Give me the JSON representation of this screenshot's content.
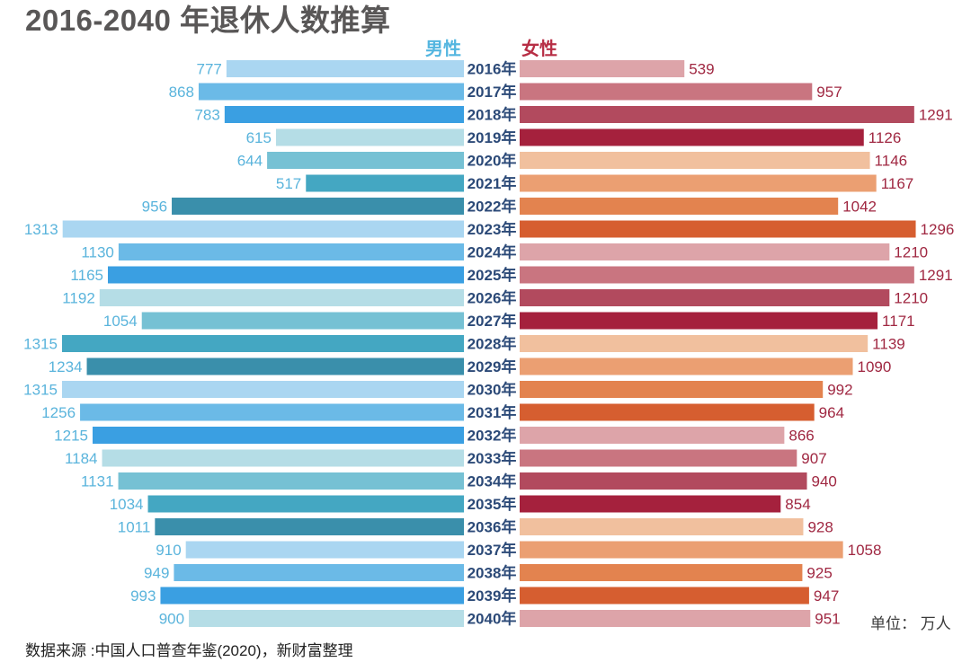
{
  "title": "2016-2040 年退休人数推算",
  "legend": {
    "male": "男性",
    "female": "女性"
  },
  "unit_label": "单位： 万人",
  "source": "数据来源 :中国人口普查年鉴(2020)，新财富整理",
  "colors": {
    "male_cycle": [
      "#aad6f1",
      "#6bbae7",
      "#3a9fe2",
      "#b5dde6",
      "#76c1d4",
      "#44a7c2",
      "#3a8fab"
    ],
    "female_cycle": [
      "#dda4a9",
      "#c97580",
      "#b24a5e",
      "#a5213d",
      "#f1c09e",
      "#eb9f72",
      "#e3834f",
      "#d65e30"
    ],
    "value_male": "#5ab4dc",
    "value_female": "#a02842",
    "year_text": "#2c4a78"
  },
  "chart_data": {
    "type": "bar",
    "orientation": "horizontal-butterfly",
    "title": "2016-2040 年退休人数推算",
    "xlabel": "",
    "ylabel": "",
    "xlim": [
      0,
      1315
    ],
    "categories": [
      "2016年",
      "2017年",
      "2018年",
      "2019年",
      "2020年",
      "2021年",
      "2022年",
      "2023年",
      "2024年",
      "2025年",
      "2026年",
      "2027年",
      "2028年",
      "2029年",
      "2030年",
      "2031年",
      "2032年",
      "2033年",
      "2034年",
      "2035年",
      "2036年",
      "2037年",
      "2038年",
      "2039年",
      "2040年"
    ],
    "series": [
      {
        "name": "男性",
        "values": [
          777,
          868,
          783,
          615,
          644,
          517,
          956,
          1313,
          1130,
          1165,
          1192,
          1054,
          1315,
          1234,
          1315,
          1256,
          1215,
          1184,
          1131,
          1034,
          1011,
          910,
          949,
          993,
          900
        ]
      },
      {
        "name": "女性",
        "values": [
          539,
          957,
          1291,
          1126,
          1146,
          1167,
          1042,
          1296,
          1210,
          1291,
          1210,
          1171,
          1139,
          1090,
          992,
          964,
          866,
          907,
          940,
          854,
          928,
          1058,
          925,
          947,
          951
        ]
      }
    ]
  }
}
